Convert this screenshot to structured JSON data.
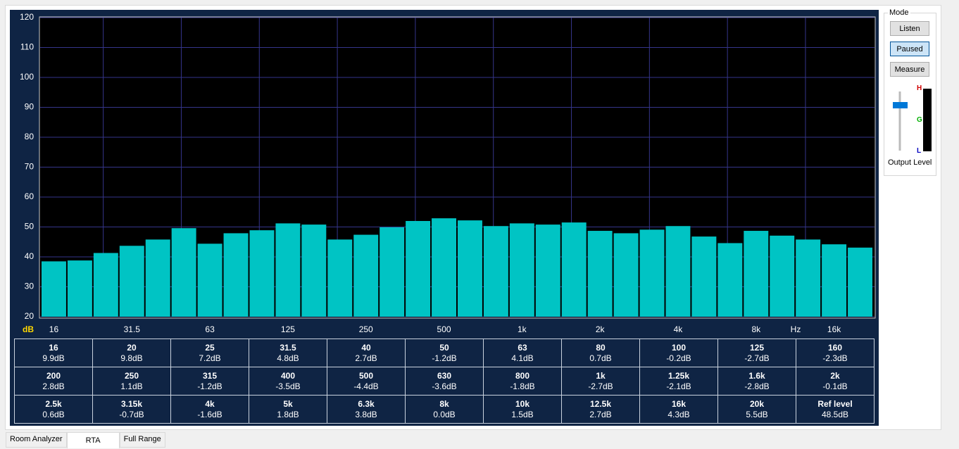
{
  "chart_data": {
    "type": "bar",
    "y_label": "dB",
    "x_label": "Hz",
    "categories": [
      "16",
      null,
      null,
      "31.5",
      null,
      null,
      "63",
      null,
      null,
      "125",
      null,
      null,
      "250",
      null,
      null,
      "500",
      null,
      null,
      "1k",
      null,
      null,
      "2k",
      null,
      null,
      "4k",
      null,
      null,
      "8k",
      null,
      null,
      "16k",
      null
    ],
    "values": [
      38.5,
      38.8,
      41.3,
      43.7,
      45.8,
      49.6,
      44.4,
      47.9,
      48.9,
      51.2,
      50.8,
      45.8,
      47.4,
      49.9,
      52.0,
      52.9,
      52.2,
      50.3,
      51.2,
      50.8,
      51.5,
      48.7,
      47.9,
      49.1,
      50.3,
      46.8,
      44.6,
      48.7,
      47.1,
      45.8,
      44.2,
      43.1
    ],
    "color": "#00c4c4",
    "ylim": [
      20,
      120
    ],
    "yticks": [
      20,
      30,
      40,
      50,
      60,
      70,
      80,
      90,
      100,
      110,
      120
    ],
    "grid": true
  },
  "table": {
    "rows": [
      [
        [
          "16",
          "9.9dB"
        ],
        [
          "20",
          "9.8dB"
        ],
        [
          "25",
          "7.2dB"
        ],
        [
          "31.5",
          "4.8dB"
        ],
        [
          "40",
          "2.7dB"
        ],
        [
          "50",
          "-1.2dB"
        ],
        [
          "63",
          "4.1dB"
        ],
        [
          "80",
          "0.7dB"
        ],
        [
          "100",
          "-0.2dB"
        ],
        [
          "125",
          "-2.7dB"
        ],
        [
          "160",
          "-2.3dB"
        ]
      ],
      [
        [
          "200",
          "2.8dB"
        ],
        [
          "250",
          "1.1dB"
        ],
        [
          "315",
          "-1.2dB"
        ],
        [
          "400",
          "-3.5dB"
        ],
        [
          "500",
          "-4.4dB"
        ],
        [
          "630",
          "-3.6dB"
        ],
        [
          "800",
          "-1.8dB"
        ],
        [
          "1k",
          "-2.7dB"
        ],
        [
          "1.25k",
          "-2.1dB"
        ],
        [
          "1.6k",
          "-2.8dB"
        ],
        [
          "2k",
          "-0.1dB"
        ]
      ],
      [
        [
          "2.5k",
          "0.6dB"
        ],
        [
          "3.15k",
          "-0.7dB"
        ],
        [
          "4k",
          "-1.6dB"
        ],
        [
          "5k",
          "1.8dB"
        ],
        [
          "6.3k",
          "3.8dB"
        ],
        [
          "8k",
          "0.0dB"
        ],
        [
          "10k",
          "1.5dB"
        ],
        [
          "12.5k",
          "2.7dB"
        ],
        [
          "16k",
          "4.3dB"
        ],
        [
          "20k",
          "5.5dB"
        ],
        [
          "Ref level",
          "48.5dB"
        ]
      ]
    ]
  },
  "mode_panel": {
    "title": "Mode",
    "buttons": [
      "Listen",
      "Paused",
      "Measure"
    ],
    "meter_labels": [
      "H",
      "G",
      "L"
    ],
    "output_label": "Output Level"
  },
  "tabs": [
    "Room Analyzer",
    "RTA",
    "Full Range"
  ]
}
